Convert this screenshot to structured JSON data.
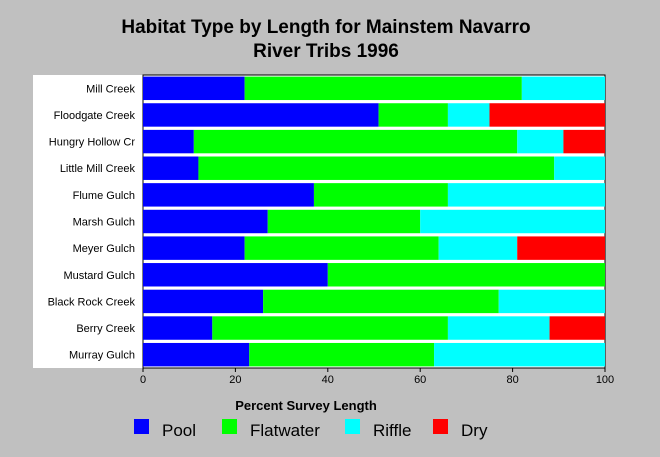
{
  "chart_data": {
    "type": "bar",
    "orientation": "horizontal",
    "stacked": true,
    "title_lines": [
      "Habitat Type by Length for Mainstem Navarro",
      "River Tribs 1996"
    ],
    "xlabel": "Percent Survey Length",
    "xlim": [
      0,
      100
    ],
    "xticks": [
      0,
      20,
      40,
      60,
      80,
      100
    ],
    "categories": [
      "Mill Creek",
      "Floodgate Creek",
      "Hungry Hollow Cr",
      "Little Mill Creek",
      "Flume Gulch",
      "Marsh Gulch",
      "Meyer Gulch",
      "Mustard Gulch",
      "Black Rock Creek",
      "Berry Creek",
      "Murray Gulch"
    ],
    "series": [
      {
        "name": "Pool",
        "color": "#0000ff",
        "values": [
          22,
          51,
          11,
          12,
          37,
          27,
          22,
          40,
          26,
          15,
          23
        ]
      },
      {
        "name": "Flatwater",
        "color": "#00ff00",
        "values": [
          60,
          15,
          70,
          77,
          29,
          33,
          42,
          60,
          51,
          51,
          40
        ]
      },
      {
        "name": "Riffle",
        "color": "#00ffff",
        "values": [
          18,
          9,
          10,
          11,
          34,
          40,
          17,
          0,
          23,
          22,
          37
        ]
      },
      {
        "name": "Dry",
        "color": "#ff0000",
        "values": [
          0,
          25,
          9,
          0,
          0,
          0,
          19,
          0,
          0,
          12,
          0
        ]
      }
    ],
    "legend_position": "bottom",
    "grid": false
  }
}
